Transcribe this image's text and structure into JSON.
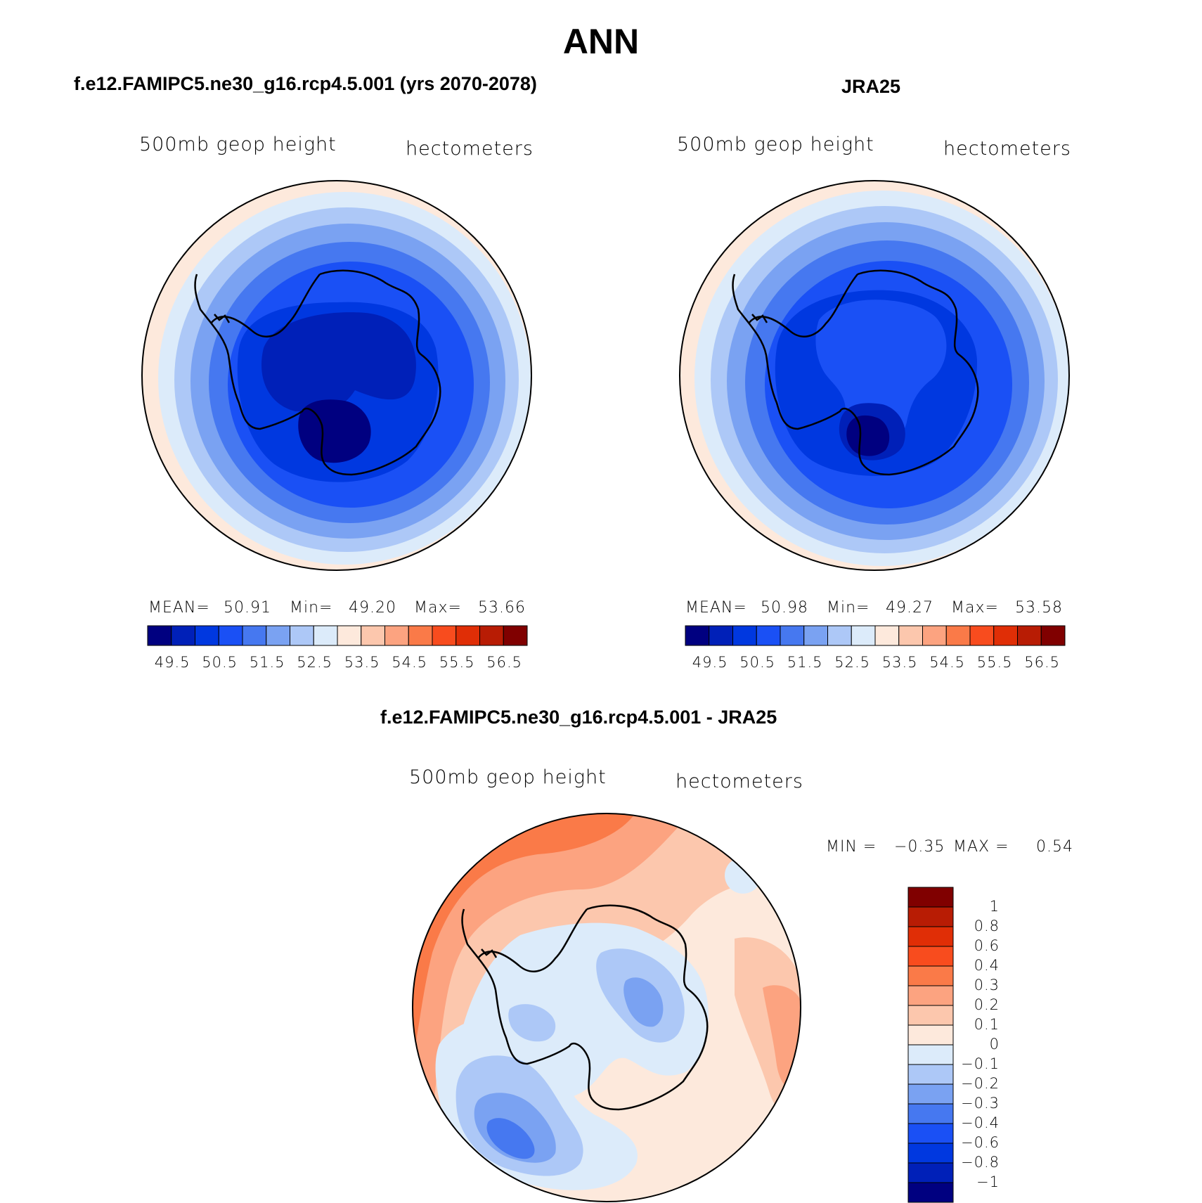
{
  "figure": {
    "title": "ANN"
  },
  "panels": {
    "model": {
      "header": "f.e12.FAMIPC5.ne30_g16.rcp4.5.001 (yrs 2070-2078)",
      "variable": "500mb geop height",
      "units": "hectometers",
      "stats": {
        "mean_label": "MEAN=",
        "mean": "50.91",
        "min_label": "Min=",
        "min": "49.20",
        "max_label": "Max=",
        "max": "53.66"
      }
    },
    "obs": {
      "header": "JRA25",
      "variable": "500mb geop height",
      "units": "hectometers",
      "stats": {
        "mean_label": "MEAN=",
        "mean": "50.98",
        "min_label": "Min=",
        "min": "49.27",
        "max_label": "Max=",
        "max": "53.58"
      }
    },
    "diff": {
      "header": "f.e12.FAMIPC5.ne30_g16.rcp4.5.001 - JRA25",
      "variable": "500mb geop height",
      "units": "hectometers",
      "stats": {
        "min_label": "MIN =",
        "min": "−0.35",
        "max_label": "MAX =",
        "max": "0.54"
      }
    }
  },
  "colorbars": {
    "abs_colors": [
      "#000080",
      "#0020b8",
      "#0038e0",
      "#1a50f5",
      "#4678f0",
      "#7aa2f2",
      "#adc8f7",
      "#dcebfa",
      "#fde9dc",
      "#fcc7ad",
      "#fca380",
      "#fa7a48",
      "#f84c1e",
      "#e02e06",
      "#b81c04",
      "#800000"
    ],
    "abs_ticks": [
      "49.5",
      "50.5",
      "51.5",
      "52.5",
      "53.5",
      "54.5",
      "55.5",
      "56.5"
    ],
    "diff_colors": [
      "#800000",
      "#b81c04",
      "#e02e06",
      "#f84c1e",
      "#fa7a48",
      "#fca380",
      "#fcc7ad",
      "#fde9dc",
      "#dcebfa",
      "#adc8f7",
      "#7aa2f2",
      "#4678f0",
      "#1a50f5",
      "#0038e0",
      "#0020b8",
      "#000080"
    ],
    "diff_ticks": [
      "1",
      "0.8",
      "0.6",
      "0.4",
      "0.3",
      "0.2",
      "0.1",
      "0",
      "−0.1",
      "−0.2",
      "−0.3",
      "−0.4",
      "−0.6",
      "−0.8",
      "−1"
    ]
  }
}
